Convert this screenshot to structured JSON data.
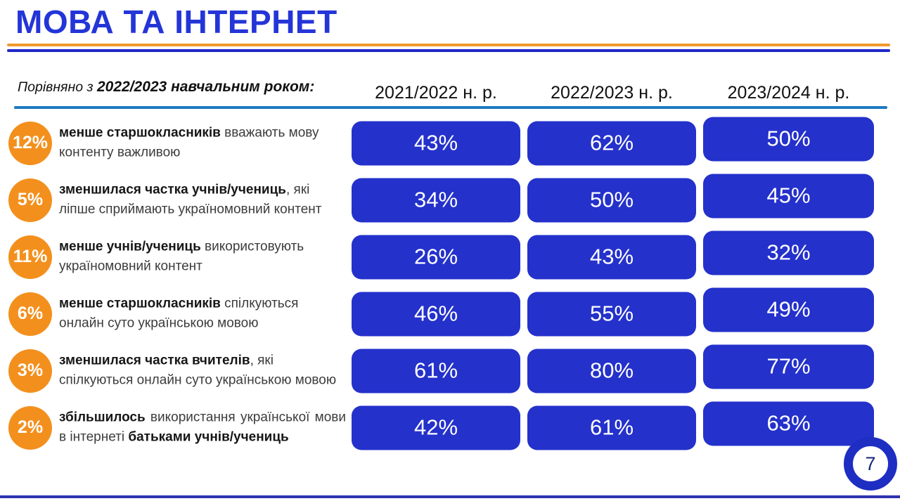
{
  "slide": {
    "title": "МОВА ТА ІНТЕРНЕТ",
    "subtitle_prefix": "Порівняно з ",
    "subtitle_bold": "2022/2023 навчальним роком:",
    "page_number": "7"
  },
  "columns": [
    "2021/2022 н. р.",
    "2022/2023 н. р.",
    "2023/2024 н. р."
  ],
  "rows": [
    {
      "badge": "12%",
      "segments": [
        {
          "text": "менше старшокласників",
          "bold": true
        },
        {
          "text": " вважають мову контенту важливою",
          "bold": false
        }
      ],
      "values": [
        "43%",
        "62%",
        "50%"
      ]
    },
    {
      "badge": "5%",
      "segments": [
        {
          "text": "зменшилася частка учнів/учениць",
          "bold": true
        },
        {
          "text": ", які ліпше сприймають україномовний контент",
          "bold": false
        }
      ],
      "values": [
        "34%",
        "50%",
        "45%"
      ]
    },
    {
      "badge": "11%",
      "segments": [
        {
          "text": "менше учнів/учениць",
          "bold": true
        },
        {
          "text": " використовують україномовний контент",
          "bold": false
        }
      ],
      "values": [
        "26%",
        "43%",
        "32%"
      ]
    },
    {
      "badge": "6%",
      "segments": [
        {
          "text": "менше старшокласників",
          "bold": true
        },
        {
          "text": " спілкуються онлайн суто українською мовою",
          "bold": false
        }
      ],
      "values": [
        "46%",
        "55%",
        "49%"
      ]
    },
    {
      "badge": "3%",
      "segments": [
        {
          "text": "зменшилася частка вчителів",
          "bold": true
        },
        {
          "text": ", які спілкуються онлайн суто українською мовою",
          "bold": false
        }
      ],
      "values": [
        "61%",
        "80%",
        "77%"
      ]
    },
    {
      "badge": "2%",
      "segments": [
        {
          "text": "збільшилось",
          "bold": true
        },
        {
          "text": " використання української мови в інтернеті ",
          "bold": false
        },
        {
          "text": "батьками учнів/учениць",
          "bold": true
        }
      ],
      "values": [
        "42%",
        "61%",
        "63%"
      ]
    }
  ],
  "colors": {
    "title_blue": "#2435d8",
    "cell_blue": "#2431cb",
    "badge_orange": "#f3901d",
    "rule_orange": "#f0992b",
    "rule_blue": "#2026c8",
    "header_underline_blue": "#1d7ac1",
    "bottom_bar_blue": "#2e34ae",
    "donut_blue": "#1e2ec2"
  },
  "chart_data": {
    "type": "table",
    "title": "МОВА ТА ІНТЕРНЕТ",
    "subtitle": "Порівняно з 2022/2023 навчальним роком:",
    "categories": [
      "2021/2022 н. р.",
      "2022/2023 н. р.",
      "2023/2024 н. р."
    ],
    "unit": "%",
    "series": [
      {
        "name": "менше старшокласників вважають мову контенту важливою",
        "change_badge": "12%",
        "values": [
          43,
          62,
          50
        ]
      },
      {
        "name": "зменшилася частка учнів/учениць, які ліпше сприймають україномовний контент",
        "change_badge": "5%",
        "values": [
          34,
          50,
          45
        ]
      },
      {
        "name": "менше учнів/учениць використовують україномовний контент",
        "change_badge": "11%",
        "values": [
          26,
          43,
          32
        ]
      },
      {
        "name": "менше старшокласників спілкуються онлайн суто українською мовою",
        "change_badge": "6%",
        "values": [
          46,
          55,
          49
        ]
      },
      {
        "name": "зменшилася частка вчителів, які спілкуються онлайн суто українською мовою",
        "change_badge": "3%",
        "values": [
          61,
          80,
          77
        ]
      },
      {
        "name": "збільшилось використання української мови в інтернеті батьками учнів/учениць",
        "change_badge": "2%",
        "values": [
          42,
          61,
          63
        ]
      }
    ]
  }
}
